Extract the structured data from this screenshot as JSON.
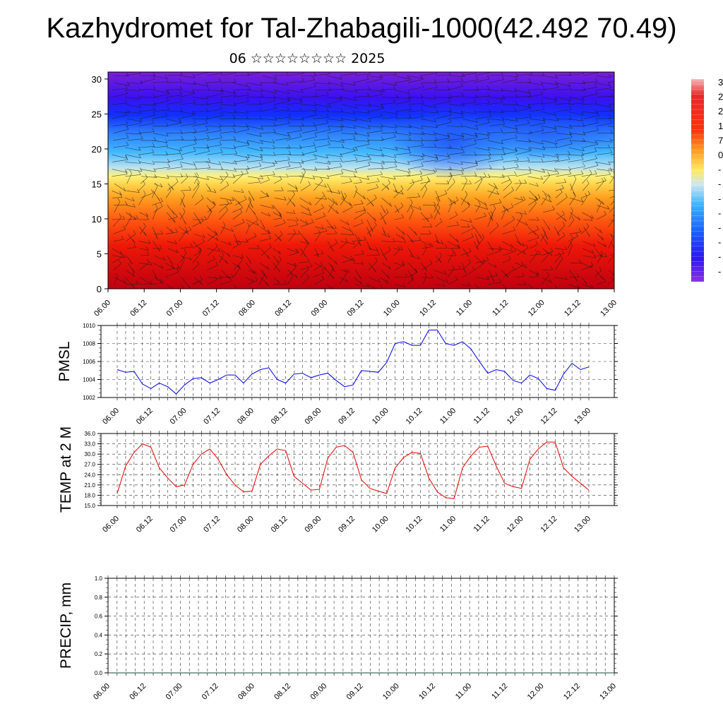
{
  "title": "Kazhydromet for Tal-Zhabagili-1000(42.492 70.49)",
  "subtitle": "06 ☆☆☆☆☆☆☆☆ 2025",
  "time_ticks": [
    "06.00",
    "06.12",
    "07.00",
    "07.12",
    "08.00",
    "08.12",
    "09.00",
    "09.12",
    "10.00",
    "10.12",
    "11.00",
    "11.12",
    "12.00",
    "12.12",
    "13.00"
  ],
  "colors": {
    "pmsl_line": "#0000ee",
    "temp_line": "#ee0000",
    "palette": [
      "#7a1fd8",
      "#3a10f0",
      "#1030ff",
      "#2c7dff",
      "#3ab4ff",
      "#a8dcf2",
      "#fff06a",
      "#ffd24a",
      "#ffa820",
      "#ff6a10",
      "#ff2a10",
      "#e61010",
      "#c80a1a",
      "#f08080"
    ]
  },
  "chart_data": [
    {
      "type": "heatmap",
      "name": "cross-section",
      "title": "",
      "xlabel": "",
      "ylabel": "",
      "ylim": [
        0,
        31
      ],
      "yticks": [
        0,
        5,
        10,
        15,
        20,
        25,
        30
      ],
      "colorbar_labels": [
        "3",
        "2",
        "2",
        "1",
        "7",
        "0",
        "-",
        "-",
        "-",
        "-",
        "-",
        "-",
        "-",
        "-"
      ],
      "description_series": [
        {
          "level": 0,
          "temp_band": "red"
        },
        {
          "level": 10,
          "temp_band": "orange"
        },
        {
          "level": 15,
          "temp_band": "yellow"
        },
        {
          "level": 20,
          "temp_band": "light-blue"
        },
        {
          "level": 25,
          "temp_band": "blue"
        },
        {
          "level": 30,
          "temp_band": "purple"
        }
      ],
      "grid": false
    },
    {
      "type": "line",
      "name": "PMSL",
      "ylabel": "PMSL",
      "ylim": [
        1002,
        1010
      ],
      "yticks": [
        "1002",
        "1004",
        "1006",
        "1008",
        "1010"
      ],
      "x_step_hours": 3,
      "values": [
        1005.1,
        1004.8,
        1004.9,
        1003.5,
        1003.0,
        1003.6,
        1003.2,
        1002.4,
        1003.4,
        1004.1,
        1004.2,
        1003.6,
        1004.0,
        1004.5,
        1004.5,
        1003.6,
        1004.6,
        1005.1,
        1005.3,
        1004.0,
        1003.6,
        1004.6,
        1004.7,
        1004.2,
        1004.5,
        1004.7,
        1003.9,
        1003.2,
        1003.4,
        1005.0,
        1004.9,
        1004.8,
        1005.9,
        1008.0,
        1008.2,
        1007.8,
        1007.8,
        1009.5,
        1009.5,
        1008.0,
        1007.8,
        1008.2,
        1007.4,
        1006.0,
        1004.7,
        1005.1,
        1004.9,
        1003.9,
        1003.6,
        1004.5,
        1004.1,
        1003.0,
        1002.8,
        1004.6,
        1005.8,
        1005.1,
        1005.4
      ],
      "grid": true
    },
    {
      "type": "line",
      "name": "TEMP at 2 M",
      "ylabel": "TEMP at 2 M",
      "ylim": [
        15,
        36
      ],
      "yticks": [
        "15.0",
        "18.0",
        "21.0",
        "24.0",
        "27.0",
        "30.0",
        "33.0",
        "36.0"
      ],
      "x_step_hours": 3,
      "values": [
        18.5,
        26.5,
        30.5,
        33.0,
        32.0,
        26.0,
        23.0,
        20.5,
        21.0,
        27.0,
        30.0,
        31.5,
        28.5,
        24.0,
        21.0,
        19.0,
        19.2,
        27.0,
        29.5,
        31.5,
        31.0,
        23.5,
        21.5,
        19.5,
        19.7,
        28.8,
        32.0,
        32.5,
        30.5,
        22.5,
        20.0,
        19.2,
        18.5,
        26.0,
        29.0,
        30.5,
        30.2,
        23.0,
        19.0,
        17.3,
        17.0,
        26.0,
        29.5,
        32.0,
        32.3,
        26.5,
        21.5,
        20.5,
        20.0,
        28.5,
        31.5,
        33.5,
        33.5,
        26.0,
        23.5,
        21.5,
        19.5
      ],
      "grid": true
    },
    {
      "type": "line",
      "name": "PRECIP, mm",
      "ylabel": "PRECIP, mm",
      "ylim": [
        0,
        1
      ],
      "yticks": [
        "0.0",
        "0.2",
        "0.4",
        "0.6",
        "0.8",
        "1.0"
      ],
      "x_step_hours": 3,
      "values": [
        0,
        0,
        0,
        0,
        0,
        0,
        0,
        0,
        0,
        0,
        0,
        0,
        0,
        0,
        0,
        0,
        0,
        0,
        0,
        0,
        0,
        0,
        0,
        0,
        0,
        0,
        0,
        0,
        0,
        0,
        0,
        0,
        0,
        0,
        0,
        0,
        0,
        0,
        0,
        0,
        0,
        0,
        0,
        0,
        0,
        0,
        0,
        0,
        0,
        0,
        0,
        0,
        0,
        0,
        0,
        0,
        0
      ],
      "grid": true
    }
  ]
}
